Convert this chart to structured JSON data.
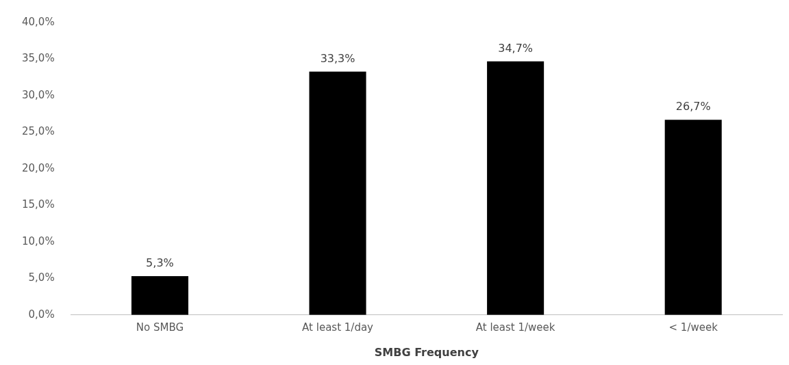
{
  "chart_data": {
    "type": "bar",
    "xlabel": "SMBG Frequency",
    "categories": [
      "No SMBG",
      "At least 1/day",
      "At least 1/week",
      "< 1/week"
    ],
    "values": [
      5.3,
      33.3,
      34.7,
      26.7
    ],
    "color": "#000000",
    "value_labels": [
      "5,3%",
      "33,3%",
      "34,7%",
      "26,7%"
    ],
    "ylim": [
      0,
      40
    ],
    "yticks": [
      {
        "value": 0,
        "label": "0,0%"
      },
      {
        "value": 5,
        "label": "5,0%"
      },
      {
        "value": 10,
        "label": "10,0%"
      },
      {
        "value": 15,
        "label": "15,0%"
      },
      {
        "value": 20,
        "label": "20,0%"
      },
      {
        "value": 25,
        "label": "25,0%"
      },
      {
        "value": 30,
        "label": "30,0%"
      },
      {
        "value": 35,
        "label": "35,0%"
      },
      {
        "value": 40,
        "label": "40,0%"
      }
    ],
    "grid": false,
    "legend": false
  }
}
